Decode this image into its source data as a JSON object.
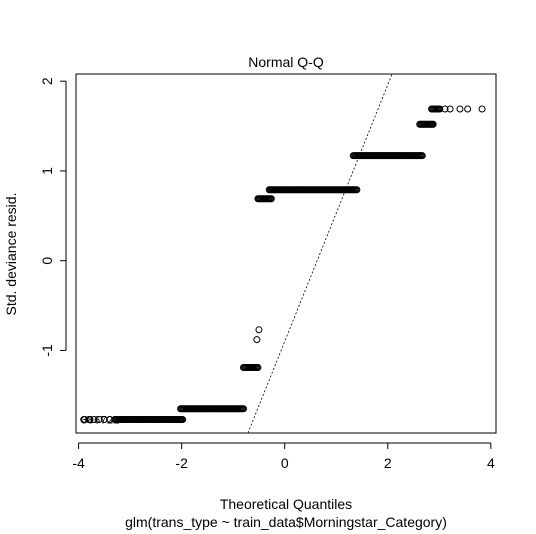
{
  "chart_data": {
    "type": "scatter",
    "title": "Normal Q-Q",
    "xlabel": "Theoretical Quantiles",
    "subtitle": "glm(trans_type ~ train_data$Morningstar_Category)",
    "ylabel": "Std. deviance resid.",
    "xlim": [
      -4.05,
      4.1
    ],
    "ylim": [
      -1.92,
      2.08
    ],
    "x_ticks": [
      -4,
      -2,
      0,
      2,
      4
    ],
    "y_ticks": [
      -1,
      0,
      1,
      2
    ],
    "x_tick_labels": [
      "-4",
      "-2",
      "0",
      "2",
      "4"
    ],
    "y_tick_labels": [
      "-1",
      "0",
      "1",
      "2"
    ],
    "grid": false,
    "marker": "open-circle",
    "reference_line": {
      "style": "dotted",
      "intercept": -0.9,
      "slope": 1.43
    },
    "point_labels": [
      "3",
      "8",
      "6",
      "7",
      "2",
      "1"
    ],
    "clusters": [
      {
        "y": -1.77,
        "x_from": -3.9,
        "x_to": -1.98,
        "open_from": -3.9,
        "open_to": -3.3
      },
      {
        "y": -1.65,
        "x_from": -2.02,
        "x_to": -0.8
      },
      {
        "y": -1.19,
        "x_from": -0.8,
        "x_to": -0.52
      },
      {
        "y": -0.88,
        "x_from": -0.54,
        "x_to": -0.54
      },
      {
        "y": -0.77,
        "x_from": -0.5,
        "x_to": -0.5
      },
      {
        "y": 0.69,
        "x_from": -0.52,
        "x_to": -0.25
      },
      {
        "y": 0.79,
        "x_from": -0.3,
        "x_to": 1.4
      },
      {
        "y": 1.17,
        "x_from": 1.33,
        "x_to": 2.68
      },
      {
        "y": 1.52,
        "x_from": 2.62,
        "x_to": 2.88
      },
      {
        "y": 1.69,
        "x_from": 2.85,
        "x_to": 3.3,
        "open_from": 3.0,
        "open_to": 3.3,
        "extra_x": [
          3.4,
          3.55,
          3.83
        ]
      }
    ]
  }
}
